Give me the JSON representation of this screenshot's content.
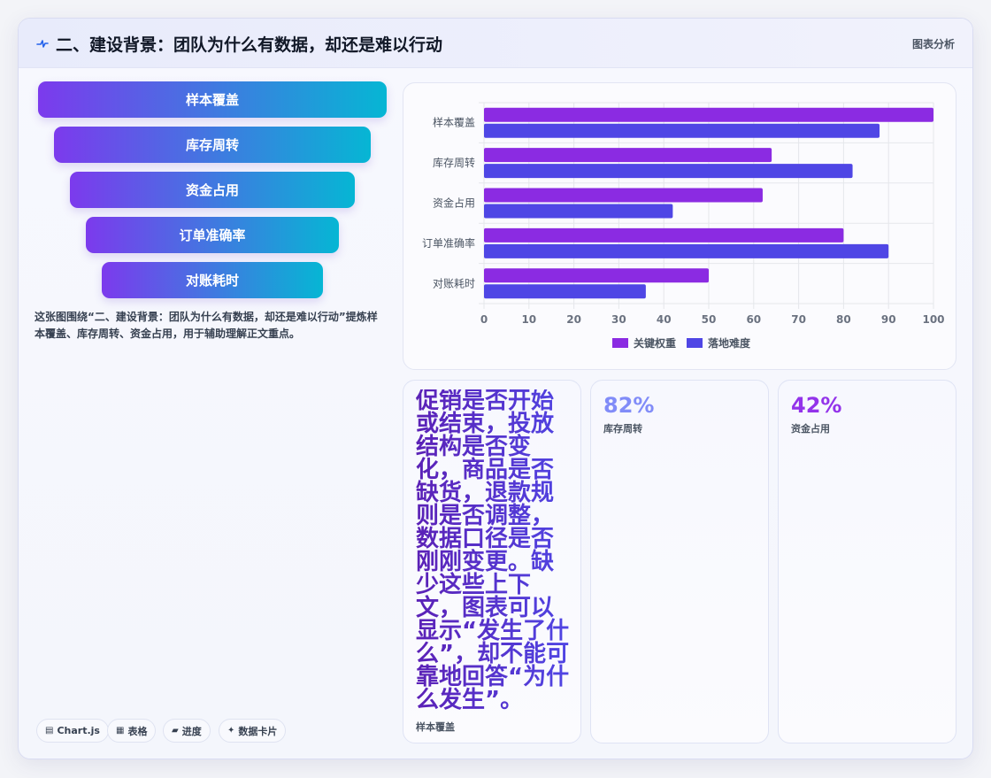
{
  "header": {
    "title": "二、建设背景：团队为什么有数据，却还是难以行动",
    "tag": "图表分析"
  },
  "funnel": {
    "items": [
      "样本覆盖",
      "库存周转",
      "资金占用",
      "订单准确率",
      "对账耗时"
    ]
  },
  "caption": "这张图围绕“二、建设背景：团队为什么有数据，却还是难以行动”提炼样本覆盖、库存周转、资金占用，用于辅助理解正文重点。",
  "chart_data": {
    "type": "bar",
    "orientation": "horizontal",
    "categories": [
      "样本覆盖",
      "库存周转",
      "资金占用",
      "订单准确率",
      "对账耗时"
    ],
    "series": [
      {
        "name": "关键权重",
        "values": [
          100,
          64,
          62,
          80,
          50
        ],
        "color": "#8b2be2"
      },
      {
        "name": "落地难度",
        "values": [
          88,
          82,
          42,
          90,
          36
        ],
        "color": "#4f46e5"
      }
    ],
    "xlim": [
      0,
      100
    ],
    "xticks": [
      0,
      10,
      20,
      30,
      40,
      50,
      60,
      70,
      80,
      90,
      100
    ],
    "grid": true,
    "legend": "bottom"
  },
  "stats": [
    {
      "value": "促销是否开始或结束，投放结构是否变化，商品是否缺货，退款规则是否调整，数据口径是否刚刚变更。缺少这些上下文，图表可以显示“发生了什么”，却不能可靠地回答“为什么发生”。",
      "label": "样本覆盖",
      "color": "#4f46e5"
    },
    {
      "value": "82%",
      "label": "库存周转",
      "color": "#818cf8"
    },
    {
      "value": "42%",
      "label": "资金占用",
      "color": "#9333ea"
    }
  ],
  "chips": [
    {
      "icon": "▤",
      "label": "Chart.js"
    },
    {
      "icon": "▦",
      "label": "表格"
    },
    {
      "icon": "▰",
      "label": "进度"
    },
    {
      "icon": "✦",
      "label": "数据卡片"
    }
  ],
  "icons": {
    "header": "pulse-icon",
    "chips": [
      "chart-icon",
      "table-icon",
      "progress-icon",
      "sparkle-icon"
    ]
  }
}
